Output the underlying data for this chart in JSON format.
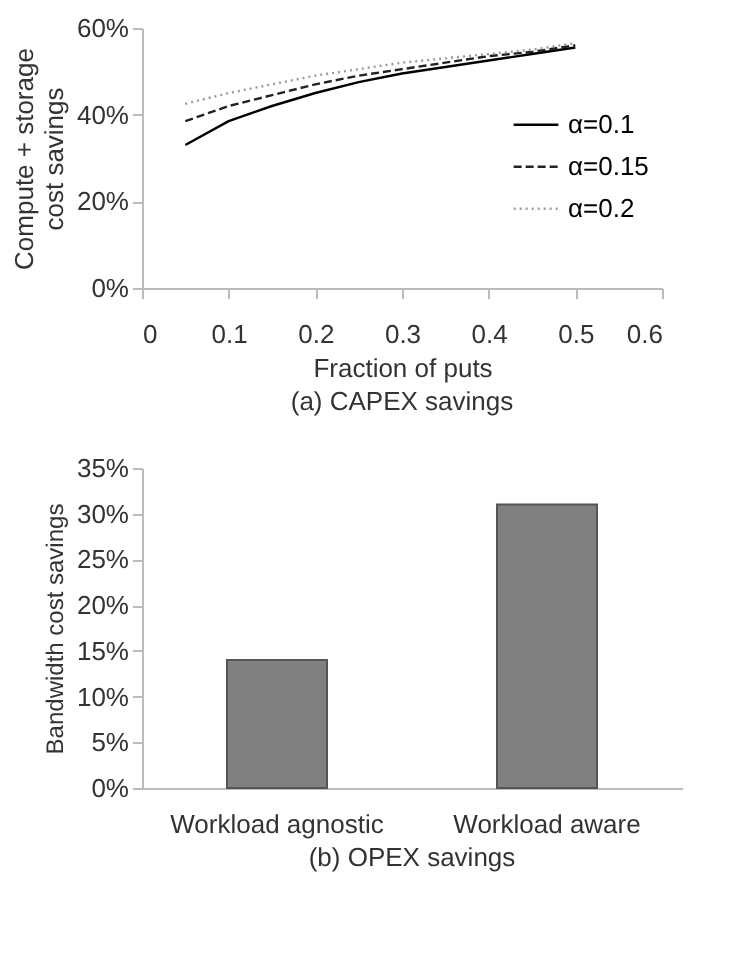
{
  "chart_data": [
    {
      "type": "line",
      "title": "(a) CAPEX savings",
      "xlabel": "Fraction of puts",
      "ylabel": "Compute + storage\ncost savings",
      "x": [
        0.05,
        0.1,
        0.15,
        0.2,
        0.25,
        0.3,
        0.35,
        0.4,
        0.45,
        0.5
      ],
      "series": [
        {
          "name": "α=0.1",
          "color": "#000000",
          "line_style": "solid",
          "values": [
            33,
            38.5,
            42,
            45,
            47.5,
            49.5,
            51,
            52.5,
            54,
            55.5
          ]
        },
        {
          "name": "α=0.15",
          "color": "#222222",
          "line_style": "dashed",
          "values": [
            38.5,
            42,
            44.5,
            47,
            49,
            50.5,
            52,
            53.5,
            54.5,
            56
          ]
        },
        {
          "name": "α=0.2",
          "color": "#999999",
          "line_style": "dotted",
          "values": [
            42.5,
            45,
            47,
            49,
            50.5,
            52,
            53,
            54,
            55,
            56.5
          ]
        }
      ],
      "xlim": [
        0,
        0.6
      ],
      "xticks": [
        0,
        0.1,
        0.2,
        0.3,
        0.4,
        0.5,
        0.6
      ],
      "ylim": [
        0,
        60
      ],
      "yticks": [
        {
          "value": 0,
          "label": "0%"
        },
        {
          "value": 20,
          "label": "20%"
        },
        {
          "value": 40,
          "label": "40%"
        },
        {
          "value": 60,
          "label": "60%"
        }
      ],
      "grid": false,
      "legend": "right",
      "marker": "none"
    },
    {
      "type": "bar",
      "title": "(b) OPEX savings",
      "ylabel": "Bandwidth cost savings",
      "categories": [
        "Workload agnostic",
        "Workload aware"
      ],
      "values": [
        14,
        31
      ],
      "color": "#808080",
      "ylim": [
        0,
        35
      ],
      "yticks": [
        {
          "value": 0,
          "label": "0%"
        },
        {
          "value": 5,
          "label": "5%"
        },
        {
          "value": 10,
          "label": "10%"
        },
        {
          "value": 15,
          "label": "15%"
        },
        {
          "value": 20,
          "label": "20%"
        },
        {
          "value": 25,
          "label": "25%"
        },
        {
          "value": 30,
          "label": "30%"
        },
        {
          "value": 35,
          "label": "35%"
        }
      ],
      "grid": false
    }
  ]
}
